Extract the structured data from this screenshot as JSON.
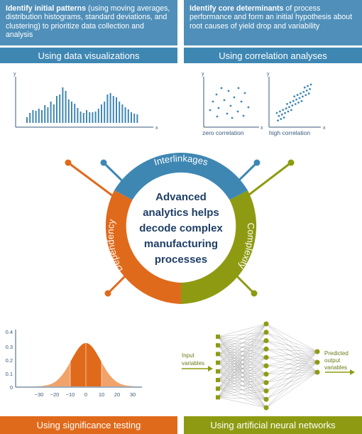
{
  "top_left": {
    "bold": "Identify initial patterns",
    "rest": " (using moving averages, distribution histograms, standard deviations, and clustering) to prioritize data collection and analysis",
    "bar_label": "Using data visualizations"
  },
  "top_right": {
    "bold": "Identify core determinants",
    "rest": " of process performance and form an initial hypothesis about root causes of yield drop and variability",
    "bar_label": "Using correlation analyses"
  },
  "histogram": {
    "y_label": "y",
    "x_label": "x",
    "values": [
      8,
      14,
      18,
      17,
      20,
      18,
      25,
      22,
      30,
      26,
      38,
      40,
      50,
      45,
      33,
      30,
      27,
      21,
      16,
      14,
      18,
      15,
      15,
      16,
      20,
      26,
      30,
      40,
      42,
      38,
      36,
      30,
      26,
      22,
      19,
      15,
      13,
      12
    ]
  },
  "correlation": {
    "y_label": "y",
    "x_label": "x",
    "zero_label": "zero correlation",
    "high_label": "high correlation"
  },
  "circle": {
    "center_lines": [
      "Advanced",
      "analytics helps",
      "decode complex",
      "manufacturing",
      "processes"
    ],
    "top_label": "Interlinkages",
    "left_label": "Dependency",
    "right_label": "Complexity",
    "colors": {
      "blue": "#3f87b3",
      "orange": "#e06a1b",
      "green": "#8e9b12"
    }
  },
  "normal_chart": {
    "y_ticks": [
      "0.4",
      "0.3",
      "0.2",
      "0.1",
      "0"
    ],
    "x_ticks": [
      "−30",
      "−20",
      "−10",
      "0",
      "10",
      "20",
      "30"
    ]
  },
  "neural": {
    "input_label": [
      "Input",
      "variables"
    ],
    "output_label": [
      "Predicted",
      "output",
      "variables"
    ]
  },
  "bottom_left": {
    "bar_label": "Using significance testing"
  },
  "bottom_right": {
    "bar_label": "Using artificial neural networks"
  }
}
